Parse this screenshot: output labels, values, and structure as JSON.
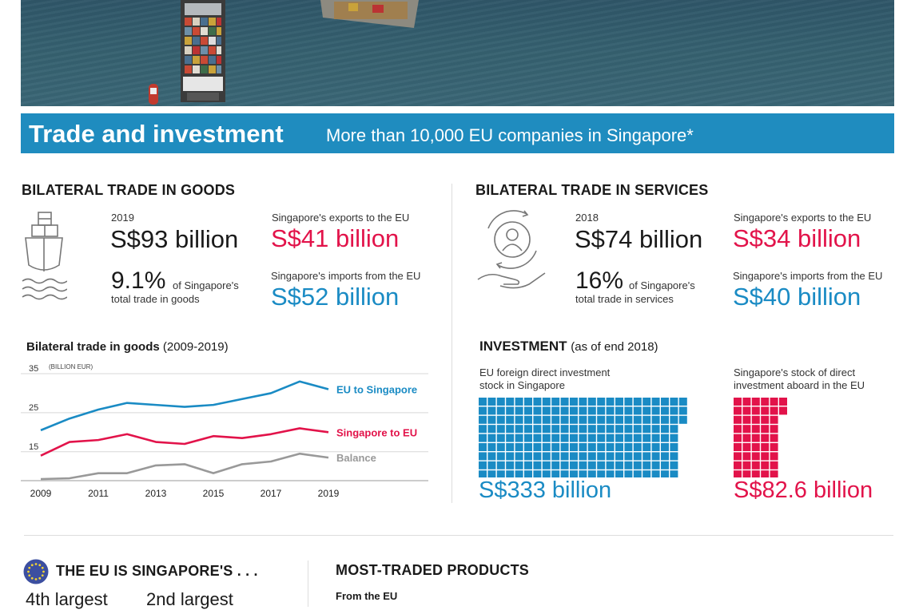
{
  "banner": {
    "title": "Trade and investment",
    "subtitle": "More than 10,000 EU companies in Singapore*"
  },
  "goods": {
    "heading": "BILATERAL TRADE IN GOODS",
    "year": "2019",
    "total": "S$93 billion",
    "share_pct": "9.1%",
    "share_text_line1": "of Singapore's",
    "share_text_line2": "total trade in goods",
    "exports_label": "Singapore's exports to the EU",
    "exports_value": "S$41 billion",
    "imports_label": "Singapore's imports from the EU",
    "imports_value": "S$52 billion"
  },
  "services": {
    "heading": "BILATERAL TRADE IN SERVICES",
    "year": "2018",
    "total": "S$74 billion",
    "share_pct": "16%",
    "share_text_line1": "of Singapore's",
    "share_text_line2": "total trade in services",
    "exports_label": "Singapore's exports to the EU",
    "exports_value": "S$34 billion",
    "imports_label": "Singapore's imports from the EU",
    "imports_value": "S$40 billion"
  },
  "chart_data": {
    "type": "line",
    "title": "Bilateral trade in goods",
    "title_suffix": "(2009-2019)",
    "ylabel": "(BILLION EUR)",
    "ylim": [
      8,
      35
    ],
    "yticks": [
      "35",
      "25",
      "15"
    ],
    "x": [
      2009,
      2010,
      2011,
      2012,
      2013,
      2014,
      2015,
      2016,
      2017,
      2018,
      2019
    ],
    "xtick_labels": [
      "2009",
      "2011",
      "2013",
      "2015",
      "2017",
      "2019"
    ],
    "series": [
      {
        "name": "EU to Singapore",
        "color": "#1a8bc4",
        "values": [
          20.5,
          23.5,
          25.8,
          27.5,
          27,
          26.5,
          27,
          28.5,
          30,
          33,
          31
        ]
      },
      {
        "name": "Singapore to EU",
        "color": "#e2134a",
        "values": [
          14,
          17.5,
          18,
          19.5,
          17.5,
          17,
          19,
          18.5,
          19.5,
          21,
          20
        ]
      },
      {
        "name": "Balance",
        "color": "#999999",
        "values": [
          8,
          8.2,
          9.5,
          9.5,
          11.5,
          11.8,
          9.5,
          11.8,
          12.5,
          14.5,
          13.5
        ]
      }
    ]
  },
  "investment": {
    "heading": "INVESTMENT",
    "heading_suffix": "(as of end 2018)",
    "eu_label_line1": "EU foreign direct investment",
    "eu_label_line2": "stock in Singapore",
    "eu_value": "S$333 billion",
    "eu_color": "#1a8bc4",
    "sg_label_line1": "Singapore's stock of direct",
    "sg_label_line2": "investment aboard in the EU",
    "sg_value": "S$82.6 billion",
    "sg_color": "#e2134a"
  },
  "eu_partner": {
    "heading": "THE EU IS SINGAPORE'S . . .",
    "rank1": "4th largest",
    "rank2": "2nd largest"
  },
  "products": {
    "heading": "MOST-TRADED PRODUCTS",
    "from_eu": "From the EU"
  }
}
